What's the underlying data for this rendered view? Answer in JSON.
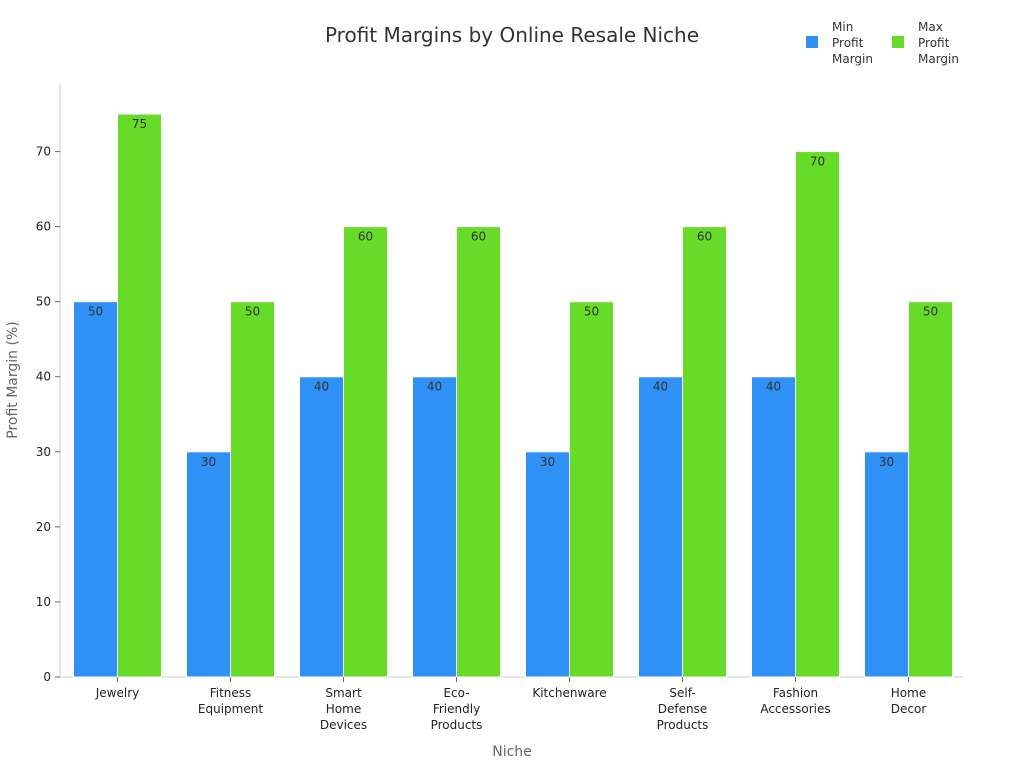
{
  "chart_data": {
    "type": "bar",
    "title": "Profit Margins by Online Resale Niche",
    "xlabel": "Niche",
    "ylabel": "Profit Margin (%)",
    "categories": [
      "Jewelry",
      "Fitness Equipment",
      "Smart Home Devices",
      "Eco-Friendly Products",
      "Kitchenware",
      "Self-Defense Products",
      "Fashion Accessories",
      "Home Decor"
    ],
    "category_lines": [
      [
        "Jewelry"
      ],
      [
        "Fitness",
        "Equipment"
      ],
      [
        "Smart",
        "Home",
        "Devices"
      ],
      [
        "Eco-",
        "Friendly",
        "Products"
      ],
      [
        "Kitchenware"
      ],
      [
        "Self-",
        "Defense",
        "Products"
      ],
      [
        "Fashion",
        "Accessories"
      ],
      [
        "Home",
        "Decor"
      ]
    ],
    "series": [
      {
        "name": "Min Profit Margin",
        "name_lines": [
          "Min",
          "Profit",
          "Margin"
        ],
        "color": "#2f90f5",
        "values": [
          50,
          30,
          40,
          40,
          30,
          40,
          40,
          30
        ]
      },
      {
        "name": "Max Profit Margin",
        "name_lines": [
          "Max",
          "Profit",
          "Margin"
        ],
        "color": "#66db28",
        "values": [
          75,
          50,
          60,
          60,
          50,
          60,
          70,
          50
        ]
      }
    ],
    "yticks": [
      0,
      10,
      20,
      30,
      40,
      50,
      60,
      70
    ],
    "ylim": [
      0,
      79
    ],
    "grid": false,
    "data_labels": true,
    "legend_position": "top-right"
  }
}
